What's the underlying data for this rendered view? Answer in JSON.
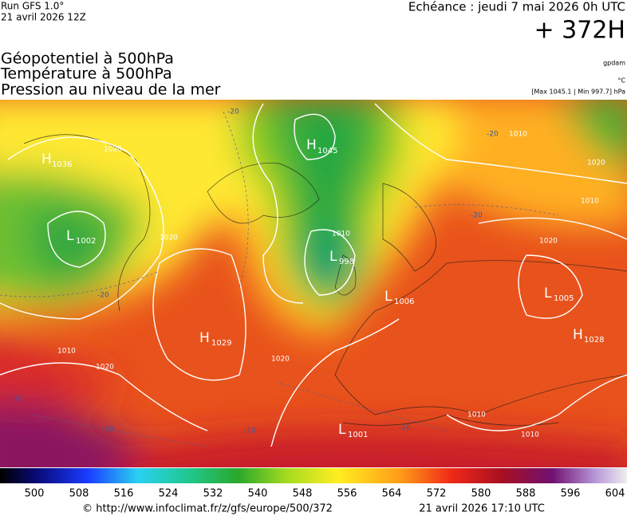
{
  "header": {
    "run": "Run GFS 1.0°",
    "run_date": "21 avril 2026 12Z",
    "valid": "Echéance : jeudi 7 mai 2026 0h UTC",
    "lead": "+ 372H",
    "titles": [
      "Géopotentiel à 500hPa",
      "Température à 500hPa",
      "Pression au niveau de la mer"
    ],
    "units": [
      "gpdam",
      "°C"
    ],
    "extremes": "[Max 1045.1 | Min 997.7] hPa"
  },
  "map": {
    "centers": [
      {
        "letter": "H",
        "value": "1036"
      },
      {
        "letter": "H",
        "value": "1045"
      },
      {
        "letter": "L",
        "value": "1002"
      },
      {
        "letter": "L",
        "value": "998"
      },
      {
        "letter": "L",
        "value": "1006"
      },
      {
        "letter": "L",
        "value": "1005"
      },
      {
        "letter": "H",
        "value": "1029"
      },
      {
        "letter": "H",
        "value": "1028"
      },
      {
        "letter": "L",
        "value": "1001"
      }
    ],
    "isobar_labels": [
      "1020",
      "1010",
      "1020",
      "1010",
      "1020",
      "1010",
      "1020",
      "1010",
      "1020",
      "1010",
      "1010",
      "1020"
    ],
    "temp_labels": [
      "-20",
      "-20",
      "-20",
      "-10",
      "-10",
      "-10",
      "-10",
      "-20"
    ]
  },
  "scale": {
    "labels": [
      "500",
      "508",
      "516",
      "524",
      "532",
      "540",
      "548",
      "556",
      "564",
      "572",
      "580",
      "588",
      "596",
      "604"
    ]
  },
  "footer": {
    "source": "© http://www.infoclimat.fr/z/gfs/europe/500/372",
    "generated": "21 avril 2026 17:10 UTC"
  }
}
